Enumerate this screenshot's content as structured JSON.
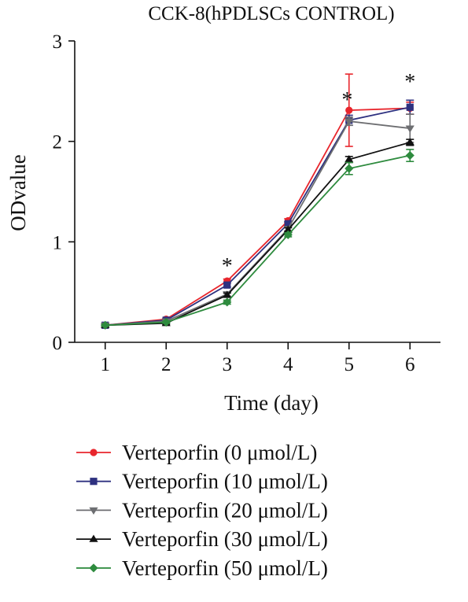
{
  "chart_data": {
    "type": "line",
    "title": "CCK-8(hPDLSCs CONTROL)",
    "xlabel": "Time (day)",
    "ylabel": "ODvalue",
    "x": [
      1,
      2,
      3,
      4,
      5,
      6
    ],
    "x_tick_labels": [
      "1",
      "2",
      "3",
      "4",
      "5",
      "6"
    ],
    "y_ticks": [
      0,
      1,
      2,
      3
    ],
    "y_tick_labels": [
      "0",
      "1",
      "2",
      "3"
    ],
    "xlim": [
      0.5,
      6.5
    ],
    "ylim": [
      0,
      3
    ],
    "grid": false,
    "legend_placement": "bottom",
    "significance_marks": [
      {
        "x": 3,
        "y": 0.8,
        "label": "*"
      },
      {
        "x": 4.97,
        "y": 2.45,
        "label": "*"
      },
      {
        "x": 6,
        "y": 2.63,
        "label": "*"
      }
    ],
    "series": [
      {
        "name": "Verteporfin (0 μmol/L)",
        "color": "#e8262d",
        "marker": "circle",
        "values": [
          0.17,
          0.23,
          0.61,
          1.21,
          2.31,
          2.33
        ],
        "errors": [
          0.01,
          0.01,
          0.02,
          0.02,
          0.36,
          0.06
        ]
      },
      {
        "name": "Verteporfin (10 μmol/L)",
        "color": "#2e3180",
        "marker": "square",
        "values": [
          0.17,
          0.22,
          0.57,
          1.18,
          2.21,
          2.34
        ],
        "errors": [
          0.01,
          0.01,
          0.02,
          0.02,
          0.05,
          0.07
        ]
      },
      {
        "name": "Verteporfin (20 μmol/L)",
        "color": "#6d6e71",
        "marker": "triangle-down",
        "values": [
          0.17,
          0.21,
          0.48,
          1.13,
          2.2,
          2.13
        ],
        "errors": [
          0.01,
          0.01,
          0.02,
          0.02,
          0.04,
          0.14
        ]
      },
      {
        "name": "Verteporfin (30 μmol/L)",
        "color": "#111111",
        "marker": "triangle-up",
        "values": [
          0.17,
          0.19,
          0.47,
          1.12,
          1.82,
          1.99
        ],
        "errors": [
          0.01,
          0.01,
          0.02,
          0.02,
          0.03,
          0.03
        ]
      },
      {
        "name": "Verteporfin (50 μmol/L)",
        "color": "#2e8b3e",
        "marker": "diamond",
        "values": [
          0.17,
          0.2,
          0.4,
          1.07,
          1.73,
          1.86
        ],
        "errors": [
          0.01,
          0.01,
          0.02,
          0.02,
          0.06,
          0.06
        ]
      }
    ]
  }
}
